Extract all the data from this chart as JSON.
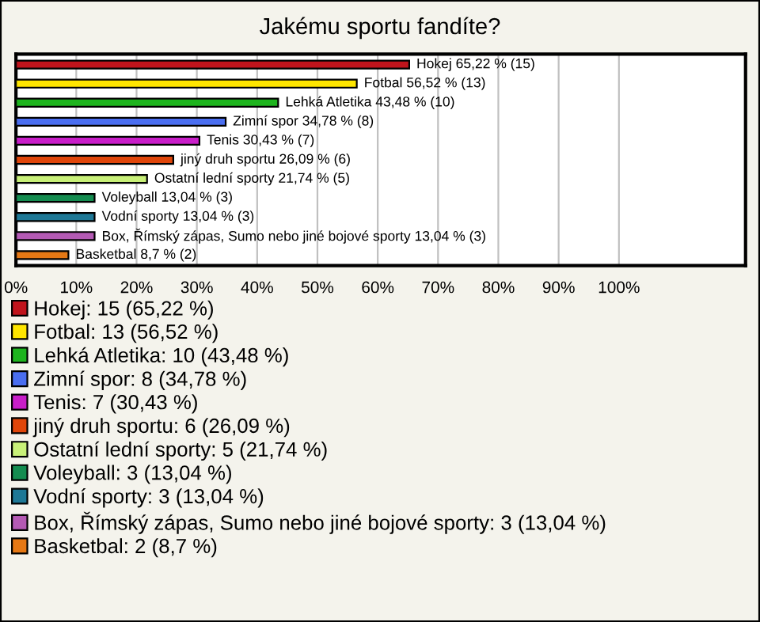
{
  "chart_data": {
    "type": "bar",
    "orientation": "horizontal",
    "title": "Jakému sportu fandíte?",
    "categories": [
      null,
      null,
      null,
      null,
      null,
      null,
      null,
      null,
      null,
      null,
      null
    ],
    "series": [
      {
        "name": "Hokej: 15 (65,22 %)",
        "color": "#c0141c",
        "values": [
          65.22,
          null,
          null,
          null,
          null,
          null,
          null,
          null,
          null,
          null,
          null
        ],
        "value_labels": [
          "Hokej 65,22 % (15)",
          null,
          null,
          null,
          null,
          null,
          null,
          null,
          null,
          null,
          null
        ]
      },
      {
        "name": "Fotbal: 13 (56,52 %)",
        "color": "#ffe600",
        "values": [
          null,
          56.52,
          null,
          null,
          null,
          null,
          null,
          null,
          null,
          null,
          null
        ],
        "value_labels": [
          null,
          "Fotbal 56,52 % (13)",
          null,
          null,
          null,
          null,
          null,
          null,
          null,
          null,
          null
        ]
      },
      {
        "name": "Lehká Atletika: 10 (43,48 %)",
        "color": "#1eb41e",
        "values": [
          null,
          null,
          43.48,
          null,
          null,
          null,
          null,
          null,
          null,
          null,
          null
        ],
        "value_labels": [
          null,
          null,
          "Lehká Atletika 43,48 % (10)",
          null,
          null,
          null,
          null,
          null,
          null,
          null,
          null
        ]
      },
      {
        "name": "Zimní spor: 8 (34,78 %)",
        "color": "#4a6ef0",
        "values": [
          null,
          null,
          null,
          34.78,
          null,
          null,
          null,
          null,
          null,
          null,
          null
        ],
        "value_labels": [
          null,
          null,
          null,
          "Zimní spor 34,78 % (8)",
          null,
          null,
          null,
          null,
          null,
          null,
          null
        ]
      },
      {
        "name": "Tenis: 7 (30,43 %)",
        "color": "#c81ec8",
        "values": [
          null,
          null,
          null,
          null,
          30.43,
          null,
          null,
          null,
          null,
          null,
          null
        ],
        "value_labels": [
          null,
          null,
          null,
          null,
          "Tenis 30,43 % (7)",
          null,
          null,
          null,
          null,
          null,
          null
        ]
      },
      {
        "name": "jiný druh sportu: 6 (26,09 %)",
        "color": "#e0460a",
        "values": [
          null,
          null,
          null,
          null,
          null,
          26.09,
          null,
          null,
          null,
          null,
          null
        ],
        "value_labels": [
          null,
          null,
          null,
          null,
          null,
          "jiný druh sportu 26,09 % (6)",
          null,
          null,
          null,
          null,
          null
        ]
      },
      {
        "name": "Ostatní lední sporty: 5 (21,74 %)",
        "color": "#c8f078",
        "values": [
          null,
          null,
          null,
          null,
          null,
          null,
          21.74,
          null,
          null,
          null,
          null
        ],
        "value_labels": [
          null,
          null,
          null,
          null,
          null,
          null,
          "Ostatní lední sporty 21,74 % (5)",
          null,
          null,
          null,
          null
        ]
      },
      {
        "name": "Voleyball: 3 (13,04 %)",
        "color": "#148c50",
        "values": [
          null,
          null,
          null,
          null,
          null,
          null,
          null,
          13.04,
          null,
          null,
          null
        ],
        "value_labels": [
          null,
          null,
          null,
          null,
          null,
          null,
          null,
          "Voleyball 13,04 % (3)",
          null,
          null,
          null
        ]
      },
      {
        "name": "Vodní sporty: 3 (13,04 %)",
        "color": "#1e7896",
        "values": [
          null,
          null,
          null,
          null,
          null,
          null,
          null,
          null,
          13.04,
          null,
          null
        ],
        "value_labels": [
          null,
          null,
          null,
          null,
          null,
          null,
          null,
          null,
          "Vodní sporty 13,04 % (3)",
          null,
          null
        ]
      },
      {
        "name": "Box, Římský zápas, Sumo nebo jiné bojové sporty: 3 (13,04 %)",
        "color": "#b45ab4",
        "values": [
          null,
          null,
          null,
          null,
          null,
          null,
          null,
          null,
          null,
          13.04,
          null
        ],
        "value_labels": [
          null,
          null,
          null,
          null,
          null,
          null,
          null,
          null,
          null,
          "Box, Římský zápas, Sumo nebo jiné bojové sporty 13,04 % (3)",
          null
        ]
      },
      {
        "name": "Basketbal: 2 (8,7 %)",
        "color": "#e67814",
        "values": [
          null,
          null,
          null,
          null,
          null,
          null,
          null,
          null,
          null,
          null,
          8.7
        ],
        "value_labels": [
          null,
          null,
          null,
          null,
          null,
          null,
          null,
          null,
          null,
          null,
          "Basketbal 8,7 % (2)"
        ]
      }
    ],
    "xlim": [
      0,
      121
    ],
    "xticks": [
      {
        "value": 0,
        "label": "0%"
      },
      {
        "value": 10,
        "label": "10%"
      },
      {
        "value": 20,
        "label": "20%"
      },
      {
        "value": 30,
        "label": "30%"
      },
      {
        "value": 40,
        "label": "40%"
      },
      {
        "value": 50,
        "label": "50%"
      },
      {
        "value": 60,
        "label": "60%"
      },
      {
        "value": 70,
        "label": "70%"
      },
      {
        "value": 80,
        "label": "80%"
      },
      {
        "value": 90,
        "label": "90%"
      },
      {
        "value": 100,
        "label": "100%"
      }
    ],
    "tick_labels": "x",
    "grid": "x",
    "legend": "bottom"
  }
}
